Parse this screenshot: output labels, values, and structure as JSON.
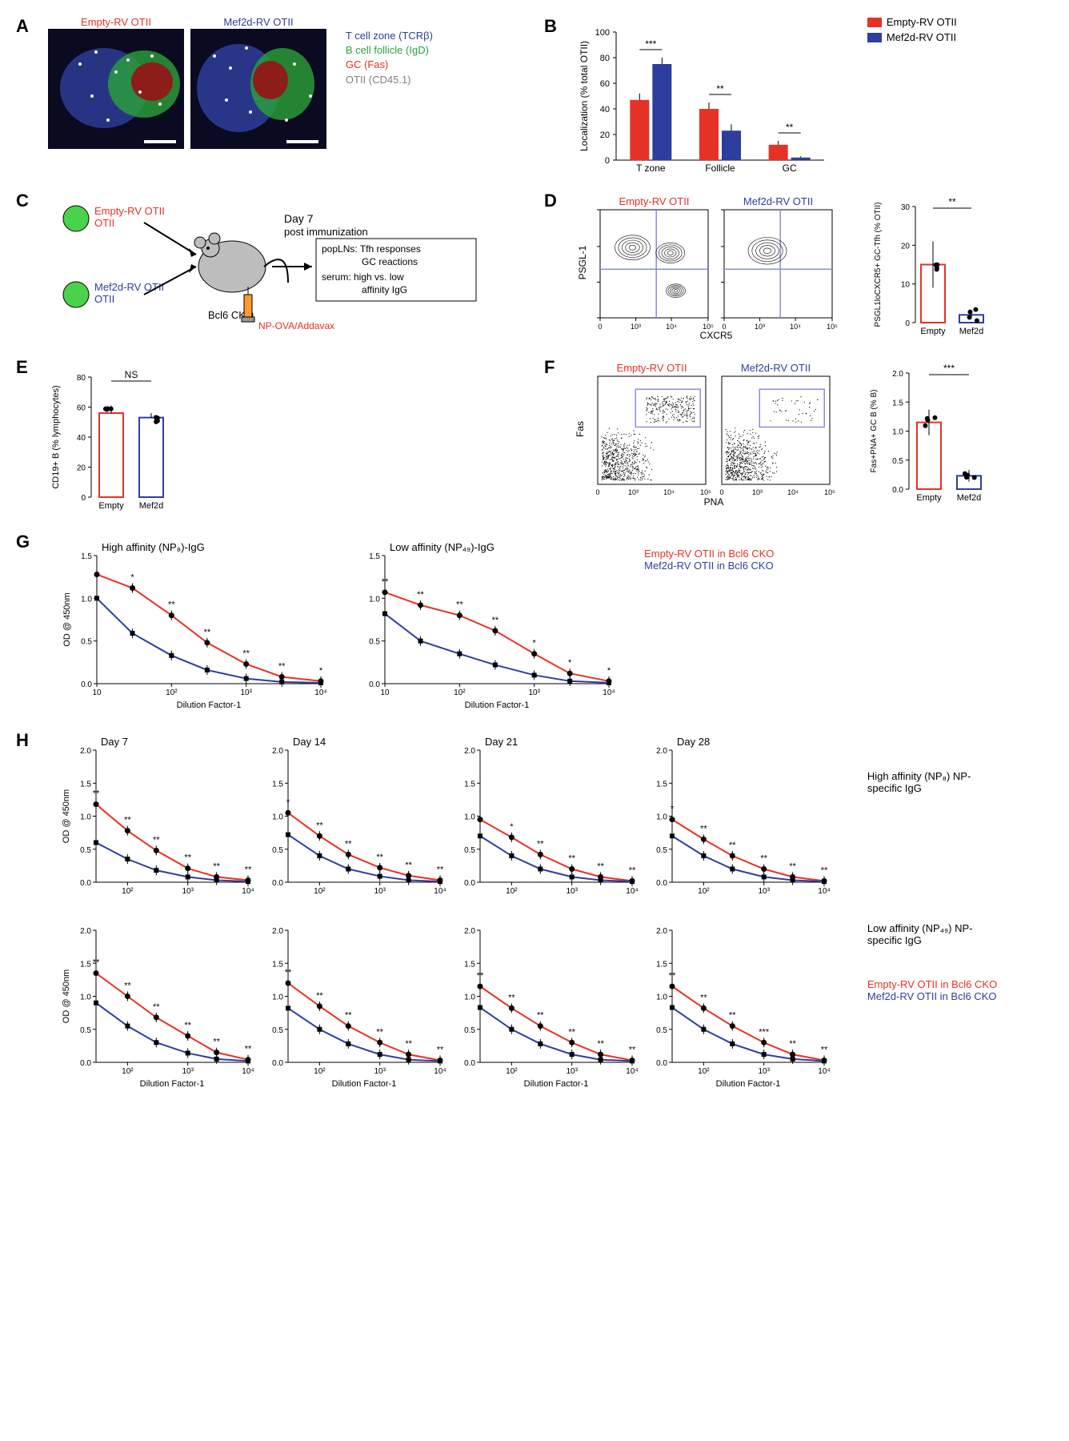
{
  "colors": {
    "empty": "#e63226",
    "mef2d": "#2e3e9e",
    "black": "#000000",
    "gray": "#808080",
    "green": "#2aa33a",
    "bg": "#ffffff",
    "tick": "#000000",
    "gatebox": "#8a8fd8"
  },
  "A": {
    "label": "A",
    "left_header": "Empty-RV OTII",
    "right_header": "Mef2d-RV OTII",
    "legend": [
      {
        "text": "T cell zone (TCRβ)",
        "color": "#2e3e9e"
      },
      {
        "text": "B cell follicle (IgD)",
        "color": "#2aa33a"
      },
      {
        "text": "GC (Fas)",
        "color": "#e63226"
      },
      {
        "text": "OTII (CD45.1)",
        "color": "#808080"
      }
    ]
  },
  "B": {
    "label": "B",
    "ylabel": "Localization (% total OTII)",
    "categories": [
      "T zone",
      "Follicle",
      "GC"
    ],
    "legend": [
      {
        "text": "Empty-RV OTII",
        "color": "#e63226"
      },
      {
        "text": "Mef2d-RV OTII",
        "color": "#2e3e9e"
      }
    ],
    "ylim": [
      0,
      100
    ],
    "ytick_step": 20,
    "bars": {
      "empty": {
        "vals": [
          47,
          40,
          12
        ],
        "err": [
          5,
          5,
          3
        ],
        "color": "#e63226"
      },
      "mef2d": {
        "vals": [
          75,
          23,
          2
        ],
        "err": [
          5,
          5,
          1
        ],
        "color": "#2e3e9e"
      }
    },
    "sig": [
      "***",
      "**",
      "**"
    ]
  },
  "C": {
    "label": "C",
    "empty_label": "Empty-RV OTII",
    "mef2d_label": "Mef2d-RV OTII",
    "mouse_label": "Bcl6 CKO",
    "day_label": "Day 7",
    "day_sub": "post immunization",
    "readout_box": [
      "popLNs: Tfh responses",
      "GC reactions",
      "serum: high vs. low",
      "affinity IgG"
    ],
    "injection": "NP-OVA/Addavax"
  },
  "D": {
    "label": "D",
    "left_header": "Empty-RV OTII",
    "right_header": "Mef2d-RV OTII",
    "xaxis": "CXCR5",
    "yaxis": "PSGL-1",
    "bar_ylabel": "PSGL1loCXCR5+ GC-Tfh (% OTII)",
    "ylim": [
      0,
      30
    ],
    "ytick_step": 10,
    "empty_val": 15,
    "empty_err": 6,
    "mef2d_val": 2,
    "mef2d_err": 1,
    "sig": "**",
    "tick_labels": [
      "0",
      "10³",
      "10⁴",
      "10⁵"
    ]
  },
  "E": {
    "label": "E",
    "ylabel": "CD19+ B (% lymphocytes)",
    "ylim": [
      0,
      80
    ],
    "ytick_step": 20,
    "empty_val": 56,
    "empty_err": 5,
    "mef2d_val": 53,
    "mef2d_err": 3,
    "sig": "NS",
    "xcats": [
      "Empty",
      "Mef2d"
    ]
  },
  "F": {
    "label": "F",
    "left_header": "Empty-RV OTII",
    "right_header": "Mef2d-RV OTII",
    "xaxis": "PNA",
    "yaxis": "Fas",
    "bar_ylabel": "Fas+PNA+ GC B (% B)",
    "ylim": [
      0,
      2.0
    ],
    "ytick_step": 0.5,
    "empty_val": 1.15,
    "empty_err": 0.22,
    "mef2d_val": 0.23,
    "mef2d_err": 0.1,
    "sig": "***",
    "xcats": [
      "Empty",
      "Mef2d"
    ],
    "tick_labels": [
      "0",
      "10³",
      "10⁴",
      "10⁵"
    ]
  },
  "G": {
    "label": "G",
    "xlabel": "Dilution Factor-1",
    "ylabel": "OD @ 450nm",
    "titles": [
      "High affinity (NP₈)-IgG",
      "Low affinity (NP₄₉)-IgG"
    ],
    "legend": [
      {
        "text": "Empty-RV OTII in Bcl6 CKO",
        "color": "#e63226"
      },
      {
        "text": "Mef2d-RV OTII in Bcl6 CKO",
        "color": "#2e3e9e"
      }
    ],
    "x": [
      10,
      30,
      100,
      300,
      1000,
      3000,
      10000
    ],
    "ylim": [
      0,
      1.5
    ],
    "ytick_step": 0.5,
    "panels": [
      {
        "empty": [
          1.28,
          1.12,
          0.8,
          0.48,
          0.23,
          0.08,
          0.03
        ],
        "mef2d": [
          1.0,
          0.59,
          0.33,
          0.16,
          0.06,
          0.02,
          0.01
        ],
        "sig": [
          "",
          "*",
          "**",
          "**",
          "**",
          "**",
          "*"
        ]
      },
      {
        "empty": [
          1.07,
          0.92,
          0.8,
          0.62,
          0.35,
          0.12,
          0.03
        ],
        "mef2d": [
          0.82,
          0.5,
          0.35,
          0.22,
          0.1,
          0.03,
          0.01
        ],
        "sig": [
          "**",
          "**",
          "**",
          "**",
          "*",
          "*",
          "*"
        ]
      }
    ]
  },
  "H": {
    "label": "H",
    "xlabel": "Dilution Factor-1",
    "ylabel": "OD @ 450nm",
    "days": [
      "Day 7",
      "Day 14",
      "Day 21",
      "Day 28"
    ],
    "row_titles": [
      "High affinity (NP₈) NP-specific IgG",
      "Low affinity (NP₄₉) NP-specific IgG"
    ],
    "legend": [
      {
        "text": "Empty-RV OTII in Bcl6 CKO",
        "color": "#e63226"
      },
      {
        "text": "Mef2d-RV OTII in Bcl6 CKO",
        "color": "#2e3e9e"
      }
    ],
    "x": [
      30,
      100,
      300,
      1000,
      3000,
      10000
    ],
    "ylim": [
      0,
      2.0
    ],
    "ytick_step": 0.5,
    "rows": [
      [
        {
          "empty": [
            1.18,
            0.78,
            0.48,
            0.21,
            0.08,
            0.03
          ],
          "mef2d": [
            0.6,
            0.35,
            0.18,
            0.08,
            0.03,
            0.01
          ],
          "sig": [
            "**",
            "**",
            "**",
            "**",
            "**",
            "**"
          ]
        },
        {
          "empty": [
            1.05,
            0.7,
            0.42,
            0.22,
            0.1,
            0.03
          ],
          "mef2d": [
            0.72,
            0.4,
            0.2,
            0.09,
            0.03,
            0.01
          ],
          "sig": [
            "*",
            "**",
            "**",
            "**",
            "**",
            "**"
          ]
        },
        {
          "empty": [
            0.95,
            0.68,
            0.42,
            0.2,
            0.08,
            0.02
          ],
          "mef2d": [
            0.7,
            0.4,
            0.2,
            0.08,
            0.03,
            0.01
          ],
          "sig": [
            "",
            "*",
            "**",
            "**",
            "**",
            "**"
          ]
        },
        {
          "empty": [
            0.95,
            0.65,
            0.4,
            0.2,
            0.08,
            0.02
          ],
          "mef2d": [
            0.7,
            0.4,
            0.2,
            0.08,
            0.03,
            0.01
          ],
          "sig": [
            "*",
            "**",
            "**",
            "**",
            "**",
            "**"
          ]
        }
      ],
      [
        {
          "empty": [
            1.35,
            1.0,
            0.68,
            0.4,
            0.15,
            0.04
          ],
          "mef2d": [
            0.9,
            0.55,
            0.3,
            0.14,
            0.05,
            0.02
          ],
          "sig": [
            "**",
            "**",
            "**",
            "**",
            "**",
            "**"
          ]
        },
        {
          "empty": [
            1.2,
            0.85,
            0.55,
            0.3,
            0.12,
            0.03
          ],
          "mef2d": [
            0.82,
            0.5,
            0.28,
            0.12,
            0.04,
            0.02
          ],
          "sig": [
            "**",
            "**",
            "**",
            "**",
            "**",
            "**"
          ]
        },
        {
          "empty": [
            1.15,
            0.82,
            0.55,
            0.3,
            0.12,
            0.03
          ],
          "mef2d": [
            0.83,
            0.5,
            0.28,
            0.12,
            0.04,
            0.02
          ],
          "sig": [
            "**",
            "**",
            "**",
            "**",
            "**",
            "**"
          ]
        },
        {
          "empty": [
            1.15,
            0.82,
            0.55,
            0.3,
            0.12,
            0.03
          ],
          "mef2d": [
            0.83,
            0.5,
            0.28,
            0.12,
            0.05,
            0.02
          ],
          "sig": [
            "**",
            "**",
            "**",
            "***",
            "**",
            "**"
          ]
        }
      ]
    ]
  }
}
